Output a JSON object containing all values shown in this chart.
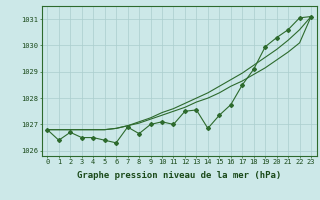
{
  "title": "Graphe pression niveau de la mer (hPa)",
  "x_values": [
    0,
    1,
    2,
    3,
    4,
    5,
    6,
    7,
    8,
    9,
    10,
    11,
    12,
    13,
    14,
    15,
    16,
    17,
    18,
    19,
    20,
    21,
    22,
    23
  ],
  "s1": [
    1026.8,
    1026.8,
    1026.8,
    1026.8,
    1026.8,
    1026.8,
    1026.85,
    1026.95,
    1027.05,
    1027.2,
    1027.35,
    1027.5,
    1027.65,
    1027.85,
    1028.0,
    1028.2,
    1028.45,
    1028.65,
    1028.9,
    1029.15,
    1029.45,
    1029.75,
    1030.1,
    1031.1
  ],
  "s2": [
    1026.8,
    1026.8,
    1026.8,
    1026.8,
    1026.8,
    1026.8,
    1026.85,
    1026.95,
    1027.1,
    1027.25,
    1027.45,
    1027.6,
    1027.8,
    1028.0,
    1028.2,
    1028.45,
    1028.7,
    1028.95,
    1029.25,
    1029.55,
    1029.85,
    1030.2,
    1030.6,
    1031.1
  ],
  "s3": [
    1026.8,
    1026.4,
    1026.7,
    1026.5,
    1026.5,
    1026.4,
    1026.3,
    1026.9,
    1026.65,
    1027.0,
    1027.1,
    1027.0,
    1027.5,
    1027.55,
    1026.85,
    1027.35,
    1027.75,
    1028.5,
    1029.1,
    1029.95,
    1030.3,
    1030.6,
    1031.05,
    1031.1
  ],
  "ylim": [
    1025.8,
    1031.5
  ],
  "yticks": [
    1026,
    1027,
    1028,
    1029,
    1030,
    1031
  ],
  "xticks": [
    0,
    1,
    2,
    3,
    4,
    5,
    6,
    7,
    8,
    9,
    10,
    11,
    12,
    13,
    14,
    15,
    16,
    17,
    18,
    19,
    20,
    21,
    22,
    23
  ],
  "line_color": "#2d6a2d",
  "bg_color": "#cce8e8",
  "grid_color": "#aacece",
  "marker": "D",
  "marker_size": 2.0,
  "linewidth": 0.8,
  "title_fontsize": 6.5,
  "tick_fontsize": 5.0
}
